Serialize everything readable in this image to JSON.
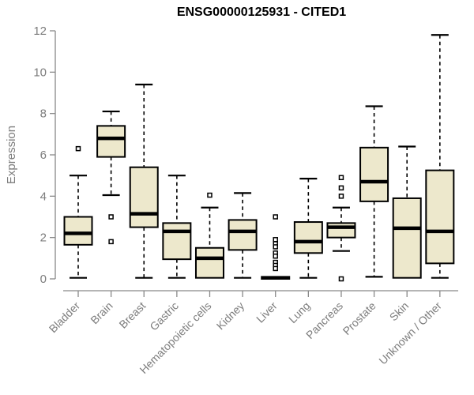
{
  "title": "ENSG00000125931 - CITED1",
  "chart_data": {
    "type": "boxplot",
    "title": "ENSG00000125931 - CITED1",
    "xlabel": "",
    "ylabel": "Expression",
    "ylim": [
      0,
      12
    ],
    "yticks": [
      0,
      2,
      4,
      6,
      8,
      10,
      12
    ],
    "grid": false,
    "categories": [
      "Bladder",
      "Brain",
      "Breast",
      "Gastric",
      "Hematopoietic cells",
      "Kidney",
      "Liver",
      "Lung",
      "Pancreas",
      "Prostate",
      "Skin",
      "Unknown / Other"
    ],
    "series": [
      {
        "name": "Bladder",
        "whisker_low": 0.05,
        "q1": 1.65,
        "median": 2.2,
        "q3": 3.0,
        "whisker_high": 5.0,
        "outliers": [
          6.3
        ]
      },
      {
        "name": "Brain",
        "whisker_low": 4.05,
        "q1": 5.9,
        "median": 6.8,
        "q3": 7.4,
        "whisker_high": 8.1,
        "outliers": [
          3.0,
          1.8
        ]
      },
      {
        "name": "Breast",
        "whisker_low": 0.05,
        "q1": 2.5,
        "median": 3.15,
        "q3": 5.4,
        "whisker_high": 9.4,
        "outliers": []
      },
      {
        "name": "Gastric",
        "whisker_low": 0.05,
        "q1": 0.95,
        "median": 2.3,
        "q3": 2.7,
        "whisker_high": 5.0,
        "outliers": []
      },
      {
        "name": "Hematopoietic cells",
        "whisker_low": 0.05,
        "q1": 0.05,
        "median": 1.0,
        "q3": 1.5,
        "whisker_high": 3.45,
        "outliers": [
          4.05
        ]
      },
      {
        "name": "Kidney",
        "whisker_low": 0.05,
        "q1": 1.4,
        "median": 2.3,
        "q3": 2.85,
        "whisker_high": 4.15,
        "outliers": []
      },
      {
        "name": "Liver",
        "whisker_low": 0.0,
        "q1": 0.0,
        "median": 0.05,
        "q3": 0.1,
        "whisker_high": 0.1,
        "outliers": [
          3.0,
          1.9,
          1.7,
          1.55,
          1.25,
          1.1,
          0.8,
          0.65,
          0.5
        ]
      },
      {
        "name": "Lung",
        "whisker_low": 0.05,
        "q1": 1.25,
        "median": 1.8,
        "q3": 2.75,
        "whisker_high": 4.85,
        "outliers": []
      },
      {
        "name": "Pancreas",
        "whisker_low": 1.35,
        "q1": 2.0,
        "median": 2.5,
        "q3": 2.7,
        "whisker_high": 3.45,
        "outliers": [
          4.9,
          4.4,
          4.0,
          0.0
        ]
      },
      {
        "name": "Prostate",
        "whisker_low": 0.1,
        "q1": 3.75,
        "median": 4.7,
        "q3": 6.35,
        "whisker_high": 8.35,
        "outliers": []
      },
      {
        "name": "Skin",
        "whisker_low": 0.05,
        "q1": 0.05,
        "median": 2.45,
        "q3": 3.9,
        "whisker_high": 6.4,
        "outliers": []
      },
      {
        "name": "Unknown / Other",
        "whisker_low": 0.05,
        "q1": 0.75,
        "median": 2.3,
        "q3": 5.25,
        "whisker_high": 11.8,
        "outliers": []
      }
    ]
  },
  "colors": {
    "box_fill": "#EDE8CC",
    "box_stroke": "#000000",
    "median": "#000000",
    "whisker": "#000000",
    "axis": "#898989",
    "tick_label": "#7d7d7d",
    "title": "#000000",
    "background": "#ffffff"
  }
}
